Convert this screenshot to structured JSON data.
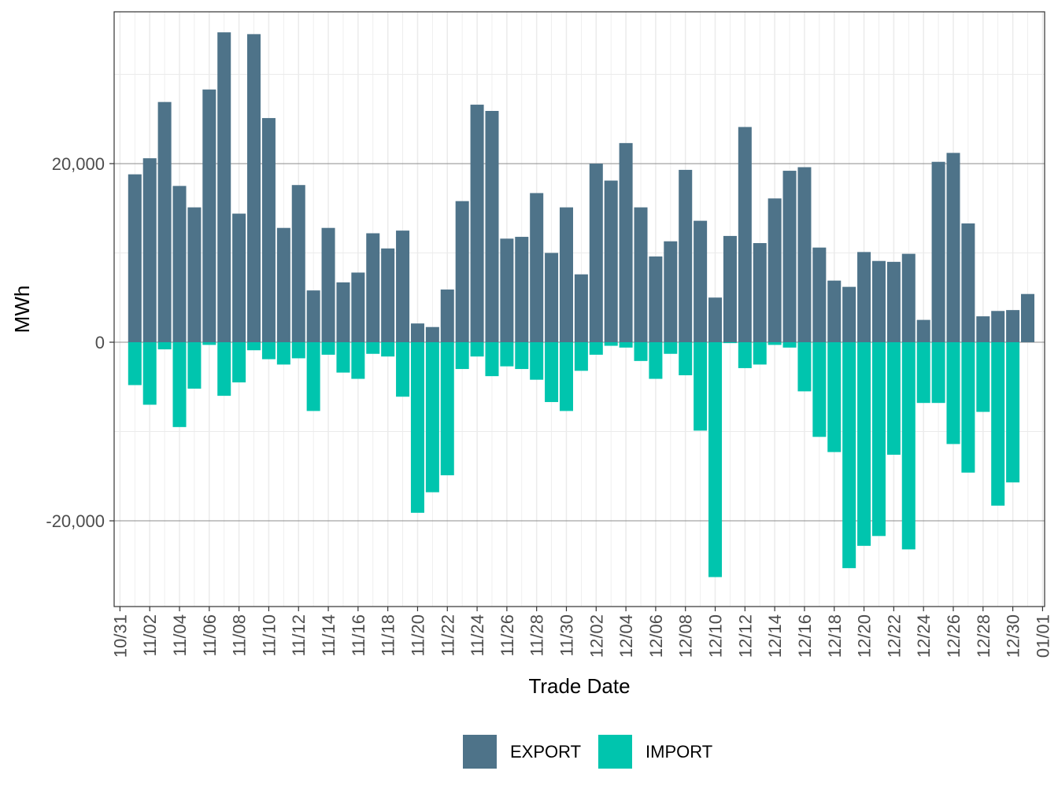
{
  "chart_data": {
    "type": "bar",
    "stacked": true,
    "xlabel": "Trade Date",
    "ylabel": "MWh",
    "ylim": [
      -29600,
      37000
    ],
    "y_ticks": [
      -20000,
      0,
      20000
    ],
    "y_tick_labels": [
      "-20,000",
      "0",
      "20,000"
    ],
    "x_tick_labels": [
      "10/31",
      "11/02",
      "11/04",
      "11/06",
      "11/08",
      "11/10",
      "11/12",
      "11/14",
      "11/16",
      "11/18",
      "11/20",
      "11/22",
      "11/24",
      "11/26",
      "11/28",
      "11/30",
      "12/02",
      "12/04",
      "12/06",
      "12/08",
      "12/10",
      "12/12",
      "12/14",
      "12/16",
      "12/18",
      "12/20",
      "12/22",
      "12/24",
      "12/26",
      "12/28",
      "12/30",
      "01/01"
    ],
    "grid": true,
    "legend_position": "bottom",
    "categories": [
      "11/01",
      "11/02",
      "11/03",
      "11/04",
      "11/05",
      "11/06",
      "11/07",
      "11/08",
      "11/09",
      "11/10",
      "11/11",
      "11/12",
      "11/13",
      "11/14",
      "11/15",
      "11/16",
      "11/17",
      "11/18",
      "11/19",
      "11/20",
      "11/21",
      "11/22",
      "11/23",
      "11/24",
      "11/25",
      "11/26",
      "11/27",
      "11/28",
      "11/29",
      "11/30",
      "12/01",
      "12/02",
      "12/03",
      "12/04",
      "12/05",
      "12/06",
      "12/07",
      "12/08",
      "12/09",
      "12/10",
      "12/11",
      "12/12",
      "12/13",
      "12/14",
      "12/15",
      "12/16",
      "12/17",
      "12/18",
      "12/19",
      "12/20",
      "12/21",
      "12/22",
      "12/23",
      "12/24",
      "12/25",
      "12/26",
      "12/27",
      "12/28",
      "12/29",
      "12/30",
      "12/31"
    ],
    "series": [
      {
        "name": "EXPORT",
        "color": "#4e7389",
        "values": [
          18800,
          20600,
          26900,
          17500,
          15100,
          28300,
          34700,
          14400,
          34500,
          25100,
          12800,
          17600,
          5800,
          12800,
          6700,
          7800,
          12200,
          10500,
          12500,
          2100,
          1700,
          5900,
          15800,
          26600,
          25900,
          11600,
          11800,
          16700,
          10000,
          15100,
          7600,
          20000,
          18100,
          22300,
          15100,
          9600,
          11300,
          19300,
          13600,
          5000,
          11900,
          24100,
          11100,
          16100,
          19200,
          19600,
          10600,
          6900,
          6200,
          10100,
          9100,
          9000,
          9900,
          2500,
          20200,
          21200,
          13300,
          2900,
          3500,
          3600,
          5400
        ]
      },
      {
        "name": "IMPORT",
        "color": "#00c5ae",
        "values": [
          -4800,
          -7000,
          -800,
          -9500,
          -5200,
          -300,
          -6000,
          -4500,
          -900,
          -1900,
          -2500,
          -1800,
          -7700,
          -1400,
          -3400,
          -4100,
          -1300,
          -1600,
          -6100,
          -19100,
          -16800,
          -14900,
          -3000,
          -1600,
          -3800,
          -2700,
          -3000,
          -4200,
          -6700,
          -7700,
          -3200,
          -1400,
          -400,
          -600,
          -2100,
          -4100,
          -1300,
          -3700,
          -9900,
          -26300,
          -100,
          -2900,
          -2500,
          -300,
          -600,
          -5500,
          -10600,
          -12300,
          -25300,
          -22800,
          -21700,
          -12600,
          -23200,
          -6800,
          -6800,
          -11400,
          -14600,
          -7800,
          -18300,
          -15700,
          0
        ]
      }
    ]
  }
}
